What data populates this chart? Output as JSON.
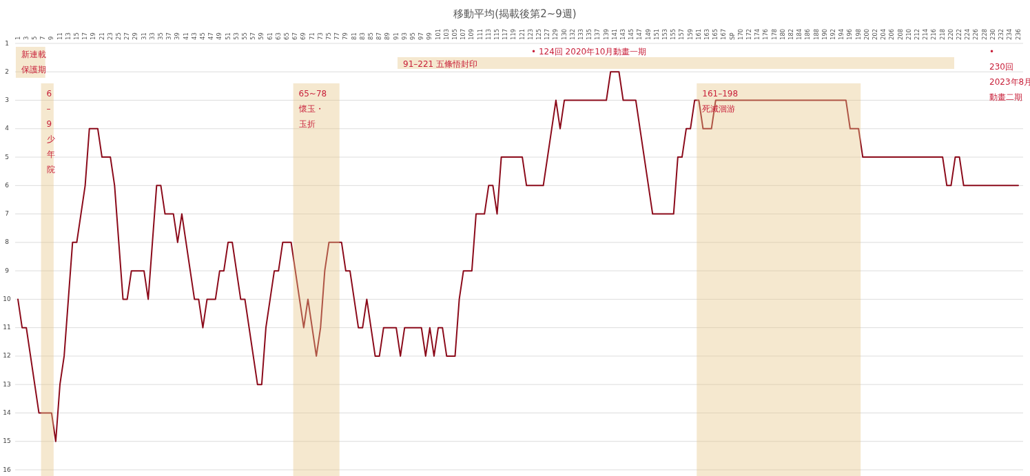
{
  "chart_data": {
    "type": "line",
    "title": "移動平均(揭載後第2~9週)",
    "categories": [
      "1",
      null,
      "3",
      null,
      "5",
      null,
      "7",
      null,
      "9",
      null,
      "11",
      null,
      "13",
      null,
      "15",
      null,
      "17",
      null,
      "19",
      null,
      "21",
      null,
      "23",
      null,
      "25",
      null,
      "27",
      null,
      "29",
      null,
      "31",
      null,
      "33",
      null,
      "35",
      null,
      "37",
      null,
      "39",
      null,
      "41",
      null,
      "43",
      null,
      "45",
      null,
      "47",
      null,
      "49",
      null,
      "51",
      null,
      "53",
      null,
      "55",
      null,
      "57",
      null,
      "59",
      null,
      "61",
      null,
      "63",
      null,
      "65",
      null,
      "67",
      null,
      "69",
      null,
      "71",
      null,
      "73",
      null,
      "75",
      null,
      "77",
      null,
      "79",
      null,
      "81",
      null,
      "83",
      null,
      "85",
      null,
      "87",
      null,
      "89",
      null,
      "91",
      null,
      "93",
      null,
      "95",
      null,
      "97",
      null,
      "99",
      null,
      "101",
      null,
      "103",
      null,
      "105",
      null,
      "107",
      null,
      "109",
      null,
      "111",
      null,
      "113",
      null,
      "115",
      null,
      "117",
      null,
      "119",
      null,
      "121",
      null,
      "123",
      null,
      "125",
      null,
      "127",
      null,
      "129",
      null,
      "130",
      null,
      "132",
      null,
      "133",
      null,
      "135",
      null,
      "137",
      null,
      "139",
      null,
      "141",
      null,
      "143",
      null,
      "145",
      null,
      "147",
      null,
      "149",
      null,
      "151",
      null,
      "153",
      null,
      "155",
      null,
      "157",
      null,
      "159",
      null,
      "161",
      null,
      "163",
      null,
      "165",
      null,
      "167",
      null,
      "SP",
      null,
      "170",
      null,
      "172",
      null,
      "174",
      null,
      "176",
      null,
      "178",
      null,
      "180",
      null,
      "182",
      null,
      "184",
      null,
      "186",
      null,
      "188",
      null,
      "190",
      null,
      "192",
      null,
      "194",
      null,
      "196",
      null,
      "198",
      null,
      "200",
      null,
      "202",
      null,
      "204",
      null,
      "206",
      null,
      "208",
      null,
      "210",
      null,
      "212",
      null,
      "214",
      null,
      "216",
      null,
      "218",
      null,
      "220",
      null,
      "222",
      null,
      "224",
      null,
      "226",
      null,
      "228",
      null,
      "230",
      null,
      "232",
      null,
      "234",
      null,
      "236"
    ],
    "values": [
      10,
      11,
      11,
      12,
      13,
      14,
      14,
      14,
      14,
      15,
      13,
      12,
      10,
      8,
      8,
      7,
      6,
      4,
      4,
      4,
      5,
      5,
      5,
      6,
      8,
      10,
      10,
      9,
      9,
      9,
      9,
      10,
      8,
      6,
      6,
      7,
      7,
      7,
      8,
      7,
      8,
      9,
      10,
      10,
      11,
      10,
      10,
      10,
      9,
      9,
      8,
      8,
      9,
      10,
      10,
      11,
      12,
      13,
      13,
      11,
      10,
      9,
      9,
      8,
      8,
      8,
      9,
      10,
      11,
      10,
      11,
      12,
      11,
      9,
      8,
      8,
      8,
      8,
      9,
      9,
      10,
      11,
      11,
      10,
      11,
      12,
      12,
      11,
      11,
      11,
      11,
      12,
      11,
      11,
      11,
      11,
      11,
      12,
      11,
      12,
      11,
      11,
      12,
      12,
      12,
      10,
      9,
      9,
      9,
      7,
      7,
      7,
      6,
      6,
      7,
      5,
      5,
      5,
      5,
      5,
      5,
      6,
      6,
      6,
      6,
      6,
      5,
      4,
      3,
      4,
      3,
      3,
      3,
      3,
      3,
      3,
      3,
      3,
      3,
      3,
      3,
      2,
      2,
      2,
      3,
      3,
      3,
      3,
      4,
      5,
      6,
      7,
      7,
      7,
      7,
      7,
      7,
      5,
      5,
      4,
      4,
      3,
      3,
      4,
      4,
      4,
      3,
      3,
      3,
      3,
      3,
      3,
      3,
      3,
      3,
      3,
      3,
      3,
      3,
      3,
      3,
      3,
      3,
      3,
      3,
      3,
      3,
      3,
      3,
      3,
      3,
      3,
      3,
      3,
      3,
      3,
      3,
      3,
      4,
      4,
      4,
      5,
      5,
      5,
      5,
      5,
      5,
      5,
      5,
      5,
      5,
      5,
      5,
      5,
      5,
      5,
      5,
      5,
      5,
      5,
      5,
      6,
      6,
      5,
      5,
      6,
      6,
      6,
      6,
      6,
      6,
      6,
      6,
      6,
      6,
      6,
      6,
      6,
      6
    ],
    "color": "#8b0a1a",
    "ylim": [
      16,
      1
    ],
    "yticks": [
      1,
      2,
      3,
      4,
      5,
      6,
      7,
      8,
      9,
      10,
      11,
      12,
      13,
      14,
      15,
      16
    ],
    "grid": "y",
    "bands": [
      {
        "axis": "x",
        "from": "1",
        "to": "7",
        "label": "新連載保護期",
        "color": "#e6c587"
      },
      {
        "axis": "x",
        "from": "7",
        "to": "9",
        "label": "6–9少年院",
        "color": "#e6c587"
      },
      {
        "axis": "x",
        "from": "67",
        "to": "77",
        "label": "65~78 懷玉・玉折",
        "color": "#e6c587"
      },
      {
        "axis": "x",
        "from": "161",
        "to": "198",
        "label": "161–198 死滅洄游",
        "color": "#e6c587"
      }
    ],
    "annotations": [
      "• 124回 2020年10月動畫一期",
      "• 230回 2023年8月動畫二期",
      "91–221 五條悟封印"
    ]
  }
}
